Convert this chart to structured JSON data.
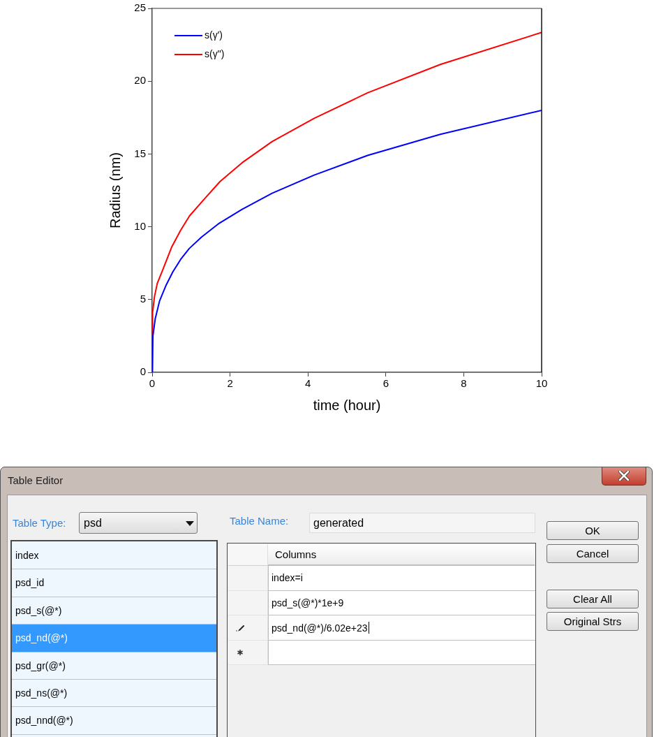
{
  "chart_data": [
    {
      "type": "line",
      "xlabel": "time (hour)",
      "ylabel": "Radius (nm)",
      "series": [
        {
          "name": "s(γ')",
          "color": "#0000ff",
          "x": [
            0,
            0.02,
            0.08,
            0.19,
            0.36,
            0.53,
            0.73,
            0.95,
            1.27,
            1.7,
            2.31,
            3.08,
            4.16,
            5.53,
            7.4,
            10
          ],
          "values": [
            0,
            2.5,
            3.7,
            4.9,
            6.0,
            6.9,
            7.75,
            8.5,
            9.3,
            10.2,
            11.2,
            12.3,
            13.55,
            14.9,
            16.35,
            18.0
          ]
        },
        {
          "name": "s(γ\")",
          "color": "#ff0000",
          "x": [
            0,
            0.01,
            0.06,
            0.13,
            0.28,
            0.5,
            0.73,
            0.96,
            1.32,
            1.74,
            2.31,
            3.08,
            4.16,
            5.53,
            7.4,
            10
          ],
          "values": [
            0,
            4.1,
            5.2,
            6.1,
            7.1,
            8.6,
            9.75,
            10.75,
            11.85,
            13.1,
            14.4,
            15.85,
            17.45,
            19.2,
            21.15,
            23.35
          ]
        }
      ],
      "xlim": [
        0,
        10
      ],
      "xticks": [
        0,
        2,
        4,
        6,
        8,
        10
      ],
      "ylim": [
        0,
        25
      ],
      "yticks": [
        0,
        5,
        10,
        15,
        20,
        25
      ],
      "legend": "top left"
    },
    {
      "type": "other",
      "title": "Table Editor",
      "annotations": [
        "Table Type:",
        "psd",
        "Table Name:",
        "generated",
        "index",
        "psd_id",
        "psd_s(@*)",
        "psd_nd(@*)",
        "psd_gr(@*)",
        "psd_ns(@*)",
        "psd_nnd(@*)",
        "Columns",
        "index=i",
        "psd_s(@*)*1e+9",
        "psd_nd(@*)/6.02e+23",
        "OK",
        "Cancel",
        "Clear All",
        "Original Strs"
      ]
    }
  ]
}
